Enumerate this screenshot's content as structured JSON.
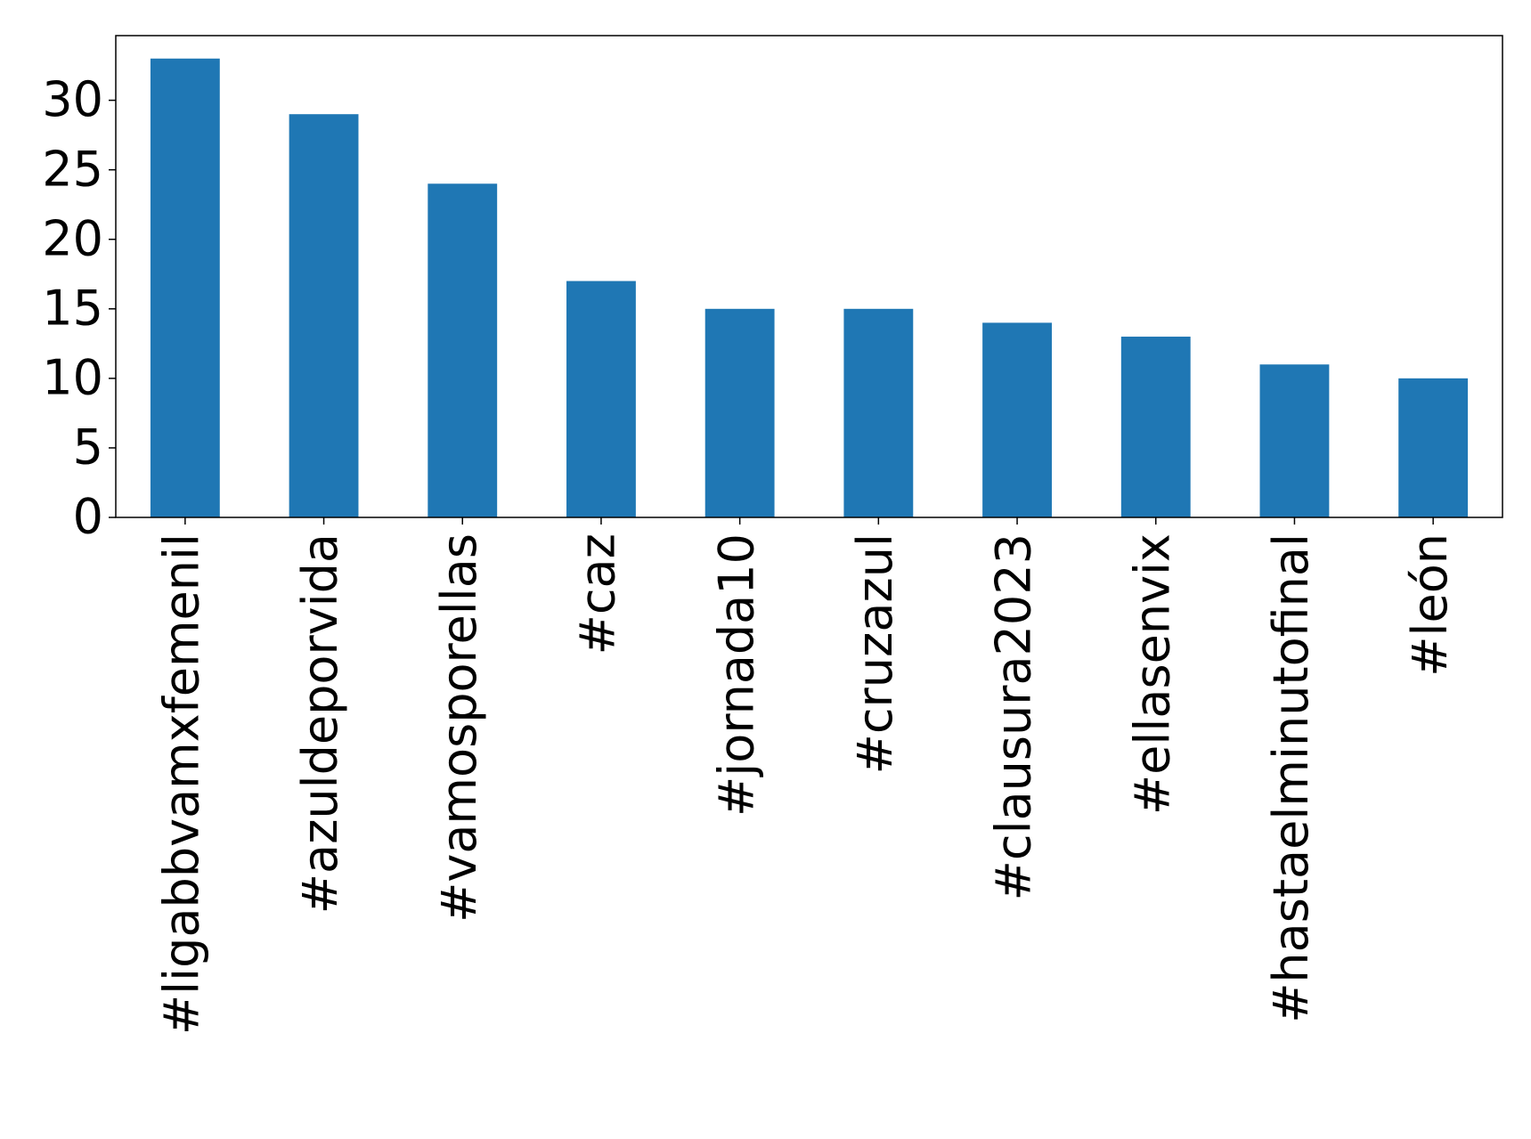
{
  "chart_data": {
    "type": "bar",
    "categories": [
      "#ligabbvamxfemenil",
      "#azuldeporvida",
      "#vamosporellas",
      "#caz",
      "#jornada10",
      "#cruzazul",
      "#clausura2023",
      "#ellasenvix",
      "#hastaelminutofinal",
      "#león"
    ],
    "values": [
      33,
      29,
      24,
      17,
      15,
      15,
      14,
      13,
      11,
      10
    ],
    "color": "#1f77b4",
    "ylim": [
      0,
      34.65
    ],
    "yticks": [
      0,
      5,
      10,
      15,
      20,
      25,
      30
    ],
    "grid": false
  }
}
